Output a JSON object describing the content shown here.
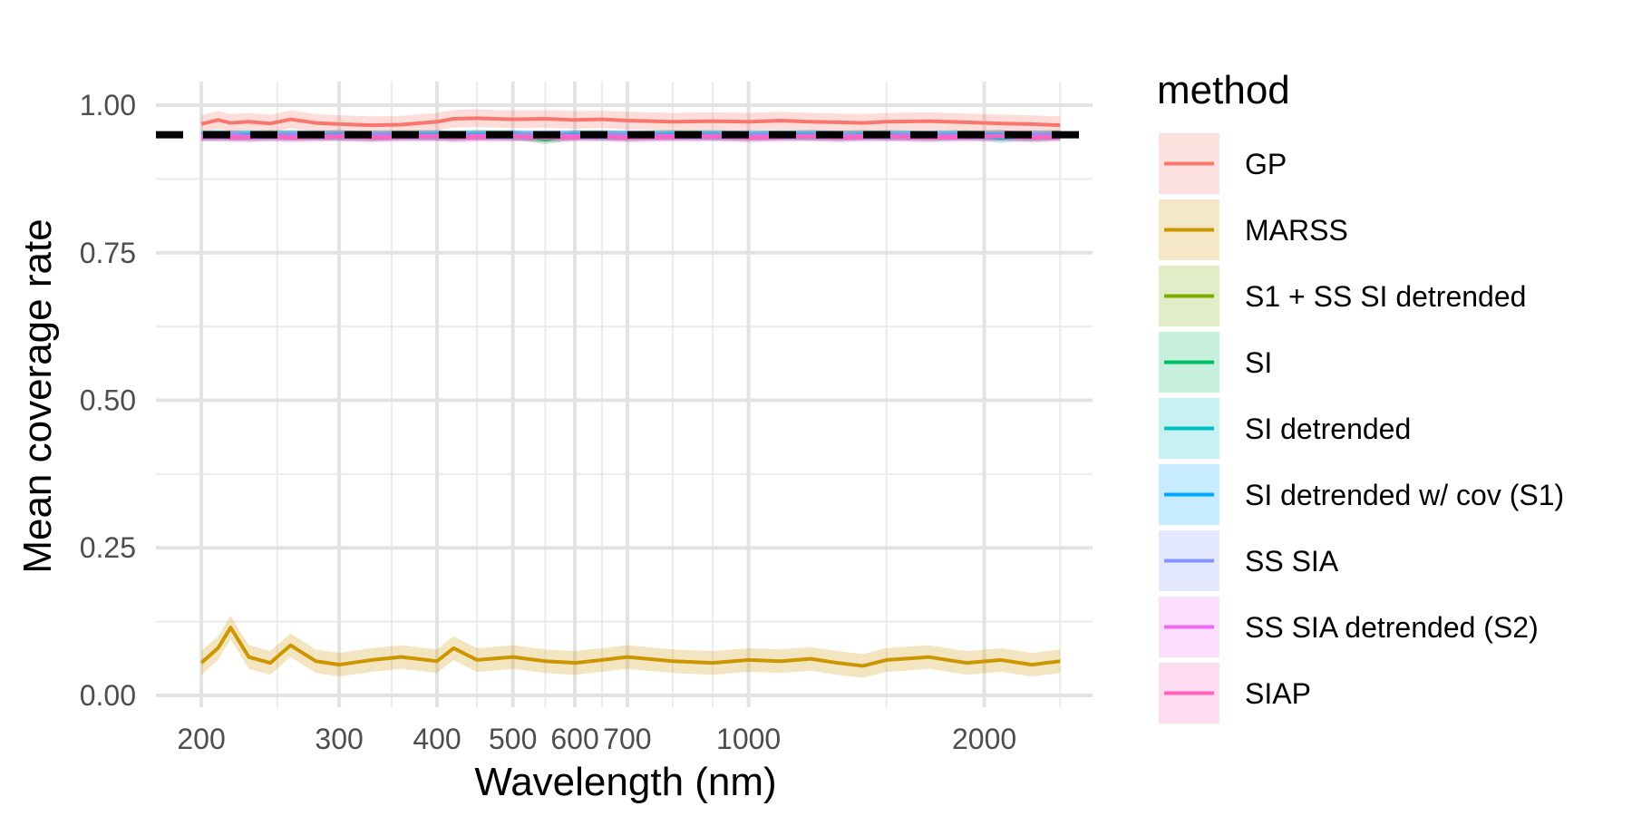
{
  "chart_data": {
    "type": "line",
    "xlabel": "Wavelength (nm)",
    "ylabel": "Mean coverage rate",
    "x_scale": "log10",
    "xlim": [
      175,
      2750
    ],
    "ylim": [
      -0.02,
      1.04
    ],
    "x_ticks": [
      {
        "value": 200,
        "label": "200"
      },
      {
        "value": 300,
        "label": "300"
      },
      {
        "value": 400,
        "label": "400"
      },
      {
        "value": 500,
        "label": "500"
      },
      {
        "value": 600,
        "label": "600"
      },
      {
        "value": 700,
        "label": "700"
      },
      {
        "value": 1000,
        "label": "1000"
      },
      {
        "value": 2000,
        "label": "2000"
      }
    ],
    "x_minor_ticks": [
      250,
      350,
      450,
      550,
      650,
      800,
      900,
      1500,
      2500
    ],
    "y_ticks": [
      {
        "value": 0.0,
        "label": "0.00"
      },
      {
        "value": 0.25,
        "label": "0.25"
      },
      {
        "value": 0.5,
        "label": "0.50"
      },
      {
        "value": 0.75,
        "label": "0.75"
      },
      {
        "value": 1.0,
        "label": "1.00"
      }
    ],
    "y_minor_ticks": [
      0.125,
      0.375,
      0.625,
      0.875
    ],
    "reference_line": {
      "y": 0.95,
      "style": "dashed",
      "color": "#000000"
    },
    "grid": true,
    "legend": {
      "title": "method",
      "position": "right"
    },
    "x": [
      200,
      210,
      218,
      230,
      245,
      260,
      280,
      300,
      330,
      360,
      400,
      420,
      450,
      500,
      550,
      600,
      650,
      700,
      800,
      900,
      1000,
      1100,
      1200,
      1300,
      1400,
      1500,
      1700,
      1900,
      2100,
      2300,
      2500
    ],
    "series": [
      {
        "name": "GP",
        "color": "#F8766D",
        "band": 0.015,
        "values": [
          0.968,
          0.975,
          0.97,
          0.972,
          0.969,
          0.976,
          0.97,
          0.968,
          0.966,
          0.967,
          0.972,
          0.977,
          0.978,
          0.976,
          0.977,
          0.975,
          0.976,
          0.974,
          0.972,
          0.973,
          0.972,
          0.974,
          0.972,
          0.971,
          0.97,
          0.972,
          0.973,
          0.971,
          0.969,
          0.968,
          0.966
        ]
      },
      {
        "name": "MARSS",
        "color": "#CD9600",
        "band": 0.02,
        "values": [
          0.055,
          0.08,
          0.115,
          0.065,
          0.055,
          0.085,
          0.058,
          0.052,
          0.06,
          0.065,
          0.058,
          0.08,
          0.06,
          0.065,
          0.058,
          0.055,
          0.06,
          0.065,
          0.058,
          0.055,
          0.06,
          0.058,
          0.062,
          0.055,
          0.05,
          0.06,
          0.065,
          0.055,
          0.06,
          0.052,
          0.058
        ]
      },
      {
        "name": "S1 + SS SI detrended",
        "color": "#7CAE00",
        "band": 0.008,
        "values": [
          0.949,
          0.948,
          0.95,
          0.947,
          0.949,
          0.95,
          0.948,
          0.949,
          0.947,
          0.95,
          0.949,
          0.948,
          0.95,
          0.949,
          0.946,
          0.95,
          0.949,
          0.948,
          0.95,
          0.949,
          0.948,
          0.95,
          0.949,
          0.948,
          0.95,
          0.949,
          0.948,
          0.95,
          0.949,
          0.948,
          0.95
        ]
      },
      {
        "name": "SI",
        "color": "#00BE67",
        "band": 0.008,
        "values": [
          0.948,
          0.95,
          0.947,
          0.949,
          0.95,
          0.948,
          0.949,
          0.95,
          0.948,
          0.949,
          0.95,
          0.948,
          0.949,
          0.95,
          0.942,
          0.949,
          0.95,
          0.948,
          0.949,
          0.95,
          0.948,
          0.949,
          0.95,
          0.948,
          0.949,
          0.95,
          0.948,
          0.949,
          0.95,
          0.946,
          0.949
        ]
      },
      {
        "name": "SI detrended",
        "color": "#00BFC4",
        "band": 0.008,
        "values": [
          0.95,
          0.948,
          0.949,
          0.95,
          0.948,
          0.949,
          0.95,
          0.948,
          0.949,
          0.95,
          0.948,
          0.949,
          0.95,
          0.948,
          0.949,
          0.95,
          0.948,
          0.949,
          0.95,
          0.948,
          0.949,
          0.95,
          0.948,
          0.949,
          0.95,
          0.948,
          0.949,
          0.95,
          0.944,
          0.949,
          0.95
        ]
      },
      {
        "name": "SI detrended w/ cov (S1)",
        "color": "#00A9FF",
        "band": 0.008,
        "values": [
          0.949,
          0.95,
          0.948,
          0.949,
          0.95,
          0.948,
          0.949,
          0.95,
          0.948,
          0.949,
          0.95,
          0.948,
          0.949,
          0.95,
          0.948,
          0.949,
          0.95,
          0.948,
          0.949,
          0.95,
          0.948,
          0.949,
          0.95,
          0.948,
          0.949,
          0.95,
          0.948,
          0.949,
          0.95,
          0.948,
          0.949
        ]
      },
      {
        "name": "SS SIA",
        "color": "#8494FF",
        "band": 0.008,
        "values": [
          0.948,
          0.949,
          0.95,
          0.948,
          0.949,
          0.95,
          0.948,
          0.949,
          0.95,
          0.948,
          0.949,
          0.95,
          0.948,
          0.949,
          0.95,
          0.948,
          0.949,
          0.95,
          0.948,
          0.949,
          0.95,
          0.948,
          0.949,
          0.95,
          0.948,
          0.949,
          0.95,
          0.948,
          0.949,
          0.95,
          0.948
        ]
      },
      {
        "name": "SS SIA detrended (S2)",
        "color": "#E76BF3",
        "band": 0.008,
        "values": [
          0.947,
          0.946,
          0.948,
          0.945,
          0.947,
          0.946,
          0.948,
          0.947,
          0.946,
          0.948,
          0.947,
          0.946,
          0.948,
          0.947,
          0.946,
          0.948,
          0.947,
          0.946,
          0.948,
          0.947,
          0.946,
          0.948,
          0.947,
          0.946,
          0.948,
          0.947,
          0.946,
          0.948,
          0.947,
          0.946,
          0.948
        ]
      },
      {
        "name": "SIAP",
        "color": "#FF62BC",
        "band": 0.008,
        "values": [
          0.946,
          0.947,
          0.945,
          0.946,
          0.947,
          0.945,
          0.946,
          0.947,
          0.945,
          0.946,
          0.947,
          0.945,
          0.946,
          0.947,
          0.945,
          0.946,
          0.947,
          0.945,
          0.946,
          0.947,
          0.945,
          0.946,
          0.947,
          0.945,
          0.946,
          0.947,
          0.945,
          0.946,
          0.947,
          0.945,
          0.946
        ]
      }
    ]
  }
}
